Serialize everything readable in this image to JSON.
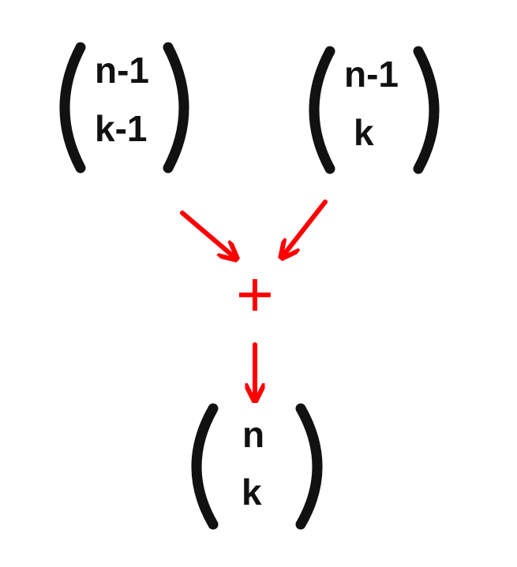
{
  "colors": {
    "text": "#111111",
    "accent": "#ff0000",
    "background": "#ffffff"
  },
  "left_binomial": {
    "top": "n-1",
    "bottom": "k-1"
  },
  "right_binomial": {
    "top": "n-1",
    "bottom": "k"
  },
  "operator": "+",
  "result_binomial": {
    "top": "n",
    "bottom": "k"
  }
}
